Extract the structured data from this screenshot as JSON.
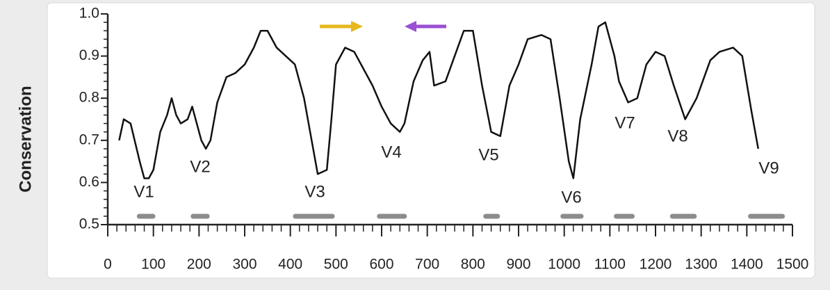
{
  "chart_data": {
    "type": "line",
    "y_label": "Conservation",
    "x": [
      25,
      35,
      50,
      70,
      80,
      90,
      100,
      115,
      130,
      140,
      150,
      160,
      175,
      185,
      195,
      205,
      215,
      225,
      240,
      260,
      280,
      300,
      320,
      335,
      350,
      370,
      390,
      410,
      430,
      450,
      460,
      480,
      490,
      500,
      520,
      540,
      560,
      580,
      600,
      620,
      640,
      650,
      670,
      690,
      705,
      715,
      740,
      760,
      780,
      800,
      820,
      840,
      860,
      880,
      900,
      920,
      950,
      970,
      990,
      1010,
      1020,
      1035,
      1060,
      1075,
      1090,
      1110,
      1120,
      1140,
      1160,
      1180,
      1200,
      1220,
      1240,
      1265,
      1290,
      1320,
      1340,
      1370,
      1390,
      1410,
      1425
    ],
    "series": [
      {
        "name": "Conservation",
        "color": "#111111",
        "values": [
          0.7,
          0.75,
          0.74,
          0.65,
          0.61,
          0.61,
          0.63,
          0.72,
          0.76,
          0.8,
          0.76,
          0.74,
          0.75,
          0.78,
          0.74,
          0.7,
          0.68,
          0.7,
          0.79,
          0.85,
          0.86,
          0.88,
          0.92,
          0.96,
          0.96,
          0.92,
          0.9,
          0.88,
          0.8,
          0.68,
          0.62,
          0.63,
          0.75,
          0.88,
          0.92,
          0.91,
          0.87,
          0.83,
          0.78,
          0.74,
          0.72,
          0.74,
          0.84,
          0.89,
          0.91,
          0.83,
          0.84,
          0.9,
          0.96,
          0.96,
          0.83,
          0.72,
          0.71,
          0.83,
          0.88,
          0.94,
          0.95,
          0.94,
          0.8,
          0.65,
          0.61,
          0.75,
          0.88,
          0.97,
          0.98,
          0.9,
          0.84,
          0.79,
          0.8,
          0.88,
          0.91,
          0.9,
          0.83,
          0.75,
          0.8,
          0.89,
          0.91,
          0.92,
          0.9,
          0.77,
          0.68
        ]
      }
    ],
    "annotations": [
      "V1",
      "V2",
      "V3",
      "V4",
      "V5",
      "V6",
      "V7",
      "V8",
      "V9"
    ],
    "regions": [
      {
        "start": 69,
        "end": 99
      },
      {
        "start": 187,
        "end": 218
      },
      {
        "start": 411,
        "end": 492
      },
      {
        "start": 595,
        "end": 650
      },
      {
        "start": 828,
        "end": 854
      },
      {
        "start": 997,
        "end": 1037
      },
      {
        "start": 1114,
        "end": 1149
      },
      {
        "start": 1237,
        "end": 1285
      },
      {
        "start": 1408,
        "end": 1478
      }
    ],
    "region_color": "#8c8c8c",
    "xlim": [
      0,
      1500
    ],
    "xticks": [
      0,
      100,
      200,
      300,
      400,
      500,
      600,
      700,
      800,
      900,
      1000,
      1100,
      1200,
      1300,
      1400,
      1500
    ],
    "ylim": [
      0.5,
      1.0
    ],
    "yticks": [
      0.5,
      0.6,
      0.7,
      0.8,
      0.9,
      {
        "value": 1.0,
        "label": "1.0"
      }
    ],
    "minor_per_major": 5,
    "grid": false
  }
}
